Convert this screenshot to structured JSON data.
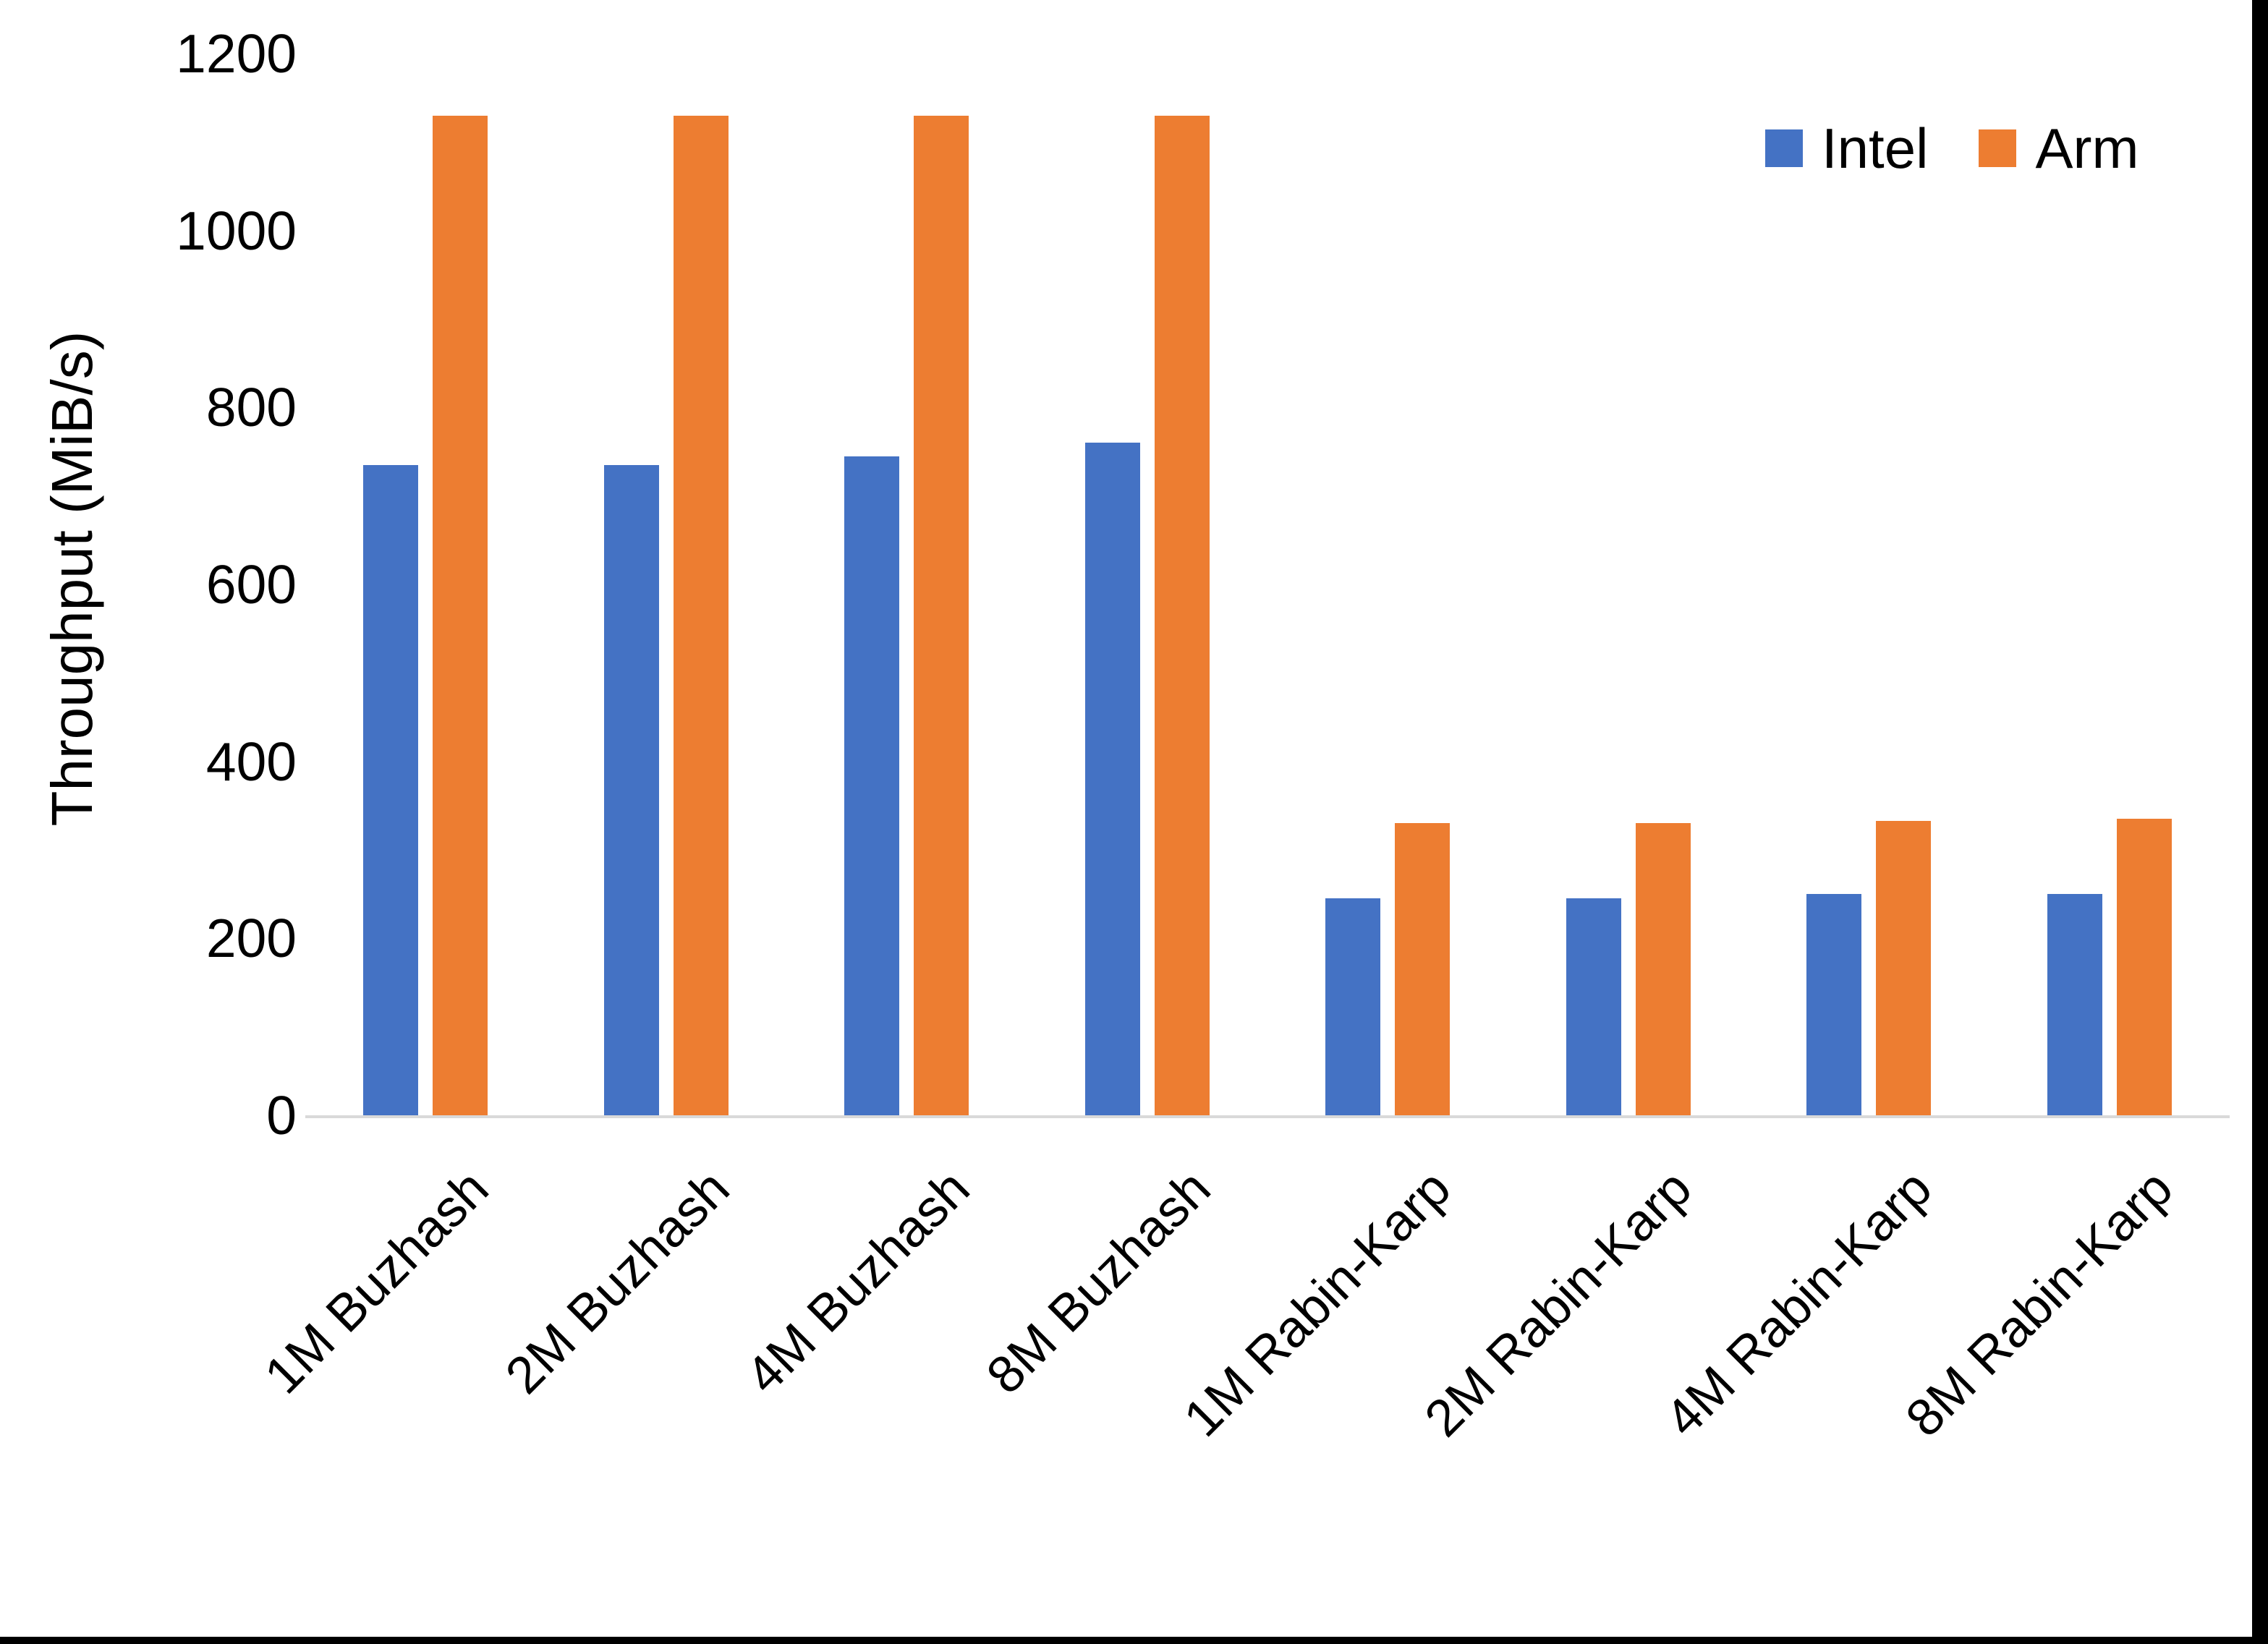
{
  "figure": {
    "background": "#ffffff",
    "edge_color": "#000000",
    "axis_line_color": "#d9d9d9",
    "text_color": "#000000"
  },
  "y_axis": {
    "title": "Throughput (MiB/s)"
  },
  "chart_data": {
    "type": "bar",
    "title": "",
    "xlabel": "",
    "ylabel": "Throughput (MiB/s)",
    "ylim": [
      0,
      1200
    ],
    "yticks": [
      0,
      200,
      400,
      600,
      800,
      1000,
      1200
    ],
    "grid": false,
    "legend_position": "top-right",
    "categories": [
      "1M Buzhash",
      "2M Buzhash",
      "4M Buzhash",
      "8M Buzhash",
      "1M Rabin-Karp",
      "2M Rabin-Karp",
      "4M Rabin-Karp",
      "8M Rabin-Karp"
    ],
    "series": [
      {
        "name": "Intel",
        "color": "#4472C4",
        "values": [
          735,
          735,
          745,
          760,
          245,
          245,
          250,
          250
        ]
      },
      {
        "name": "Arm",
        "color": "#ED7D31",
        "values": [
          1130,
          1130,
          1130,
          1130,
          330,
          330,
          333,
          335
        ]
      }
    ]
  }
}
